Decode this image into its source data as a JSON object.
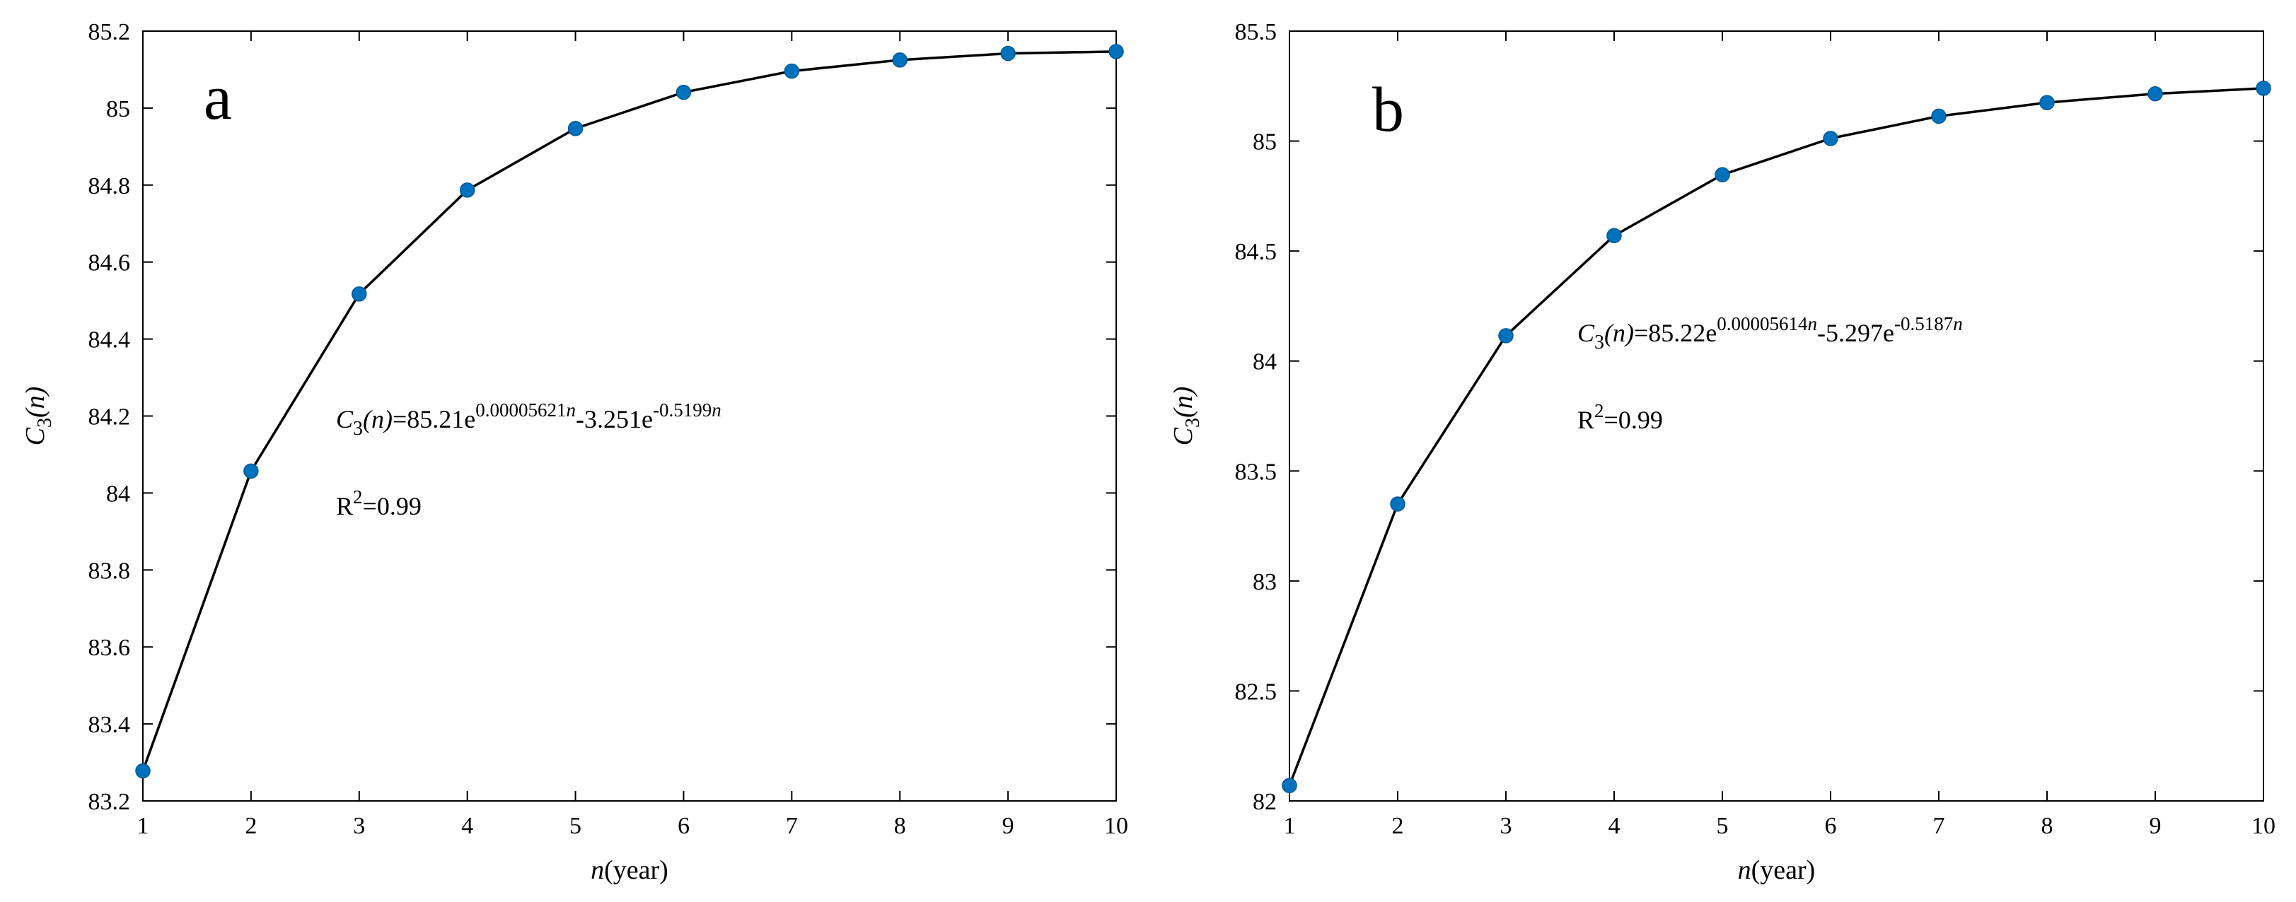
{
  "colors": {
    "marker": "#0072BD",
    "line": "#000000",
    "axis": "#000000",
    "background": "#ffffff"
  },
  "chart_data": [
    {
      "type": "line",
      "panel_label": "a",
      "xlabel": {
        "italic": "n",
        "rest": "(year)"
      },
      "ylabel": {
        "main": "C",
        "sub": "3",
        "tail": "(n)"
      },
      "x": [
        1,
        2,
        3,
        4,
        5,
        6,
        7,
        8,
        9,
        10
      ],
      "series": [
        {
          "values": [
            83.278,
            84.057,
            84.517,
            84.787,
            84.947,
            85.041,
            85.096,
            85.125,
            85.142,
            85.147
          ]
        }
      ],
      "xlim": [
        1,
        10
      ],
      "ylim": [
        83.2,
        85.2
      ],
      "xticks": [
        "1",
        "2",
        "3",
        "4",
        "5",
        "6",
        "7",
        "8",
        "9",
        "10"
      ],
      "yticks": [
        "83.2",
        "83.4",
        "83.6",
        "83.8",
        "84",
        "84.2",
        "84.4",
        "84.6",
        "84.8",
        "85",
        "85.2"
      ],
      "equation": {
        "lhs": "C",
        "lhs_sub": "3",
        "lhs_tail": "(n)",
        "eq1": "=85.21e",
        "exp1": "0.00005621",
        "mid": "-3.251e",
        "exp2": "-0.5199"
      },
      "r2": {
        "base": "R",
        "sup": "2",
        "value": "=0.99"
      },
      "grid": false,
      "legend": "none"
    },
    {
      "type": "line",
      "panel_label": "b",
      "xlabel": {
        "italic": "n",
        "rest": "(year)"
      },
      "ylabel": {
        "main": "C",
        "sub": "3",
        "tail": "(n)"
      },
      "x": [
        1,
        2,
        3,
        4,
        5,
        6,
        7,
        8,
        9,
        10
      ],
      "series": [
        {
          "values": [
            82.07,
            83.35,
            84.115,
            84.57,
            84.847,
            85.012,
            85.113,
            85.175,
            85.215,
            85.24
          ]
        }
      ],
      "xlim": [
        1,
        10
      ],
      "ylim": [
        82,
        85.5
      ],
      "xticks": [
        "1",
        "2",
        "3",
        "4",
        "5",
        "6",
        "7",
        "8",
        "9",
        "10"
      ],
      "yticks": [
        "82",
        "82.5",
        "83",
        "83.5",
        "84",
        "84.5",
        "85",
        "85.5"
      ],
      "equation": {
        "lhs": "C",
        "lhs_sub": "3",
        "lhs_tail": "(n)",
        "eq1": "=85.22e",
        "exp1": "0.00005614",
        "mid": "-5.297e",
        "exp2": "-0.5187"
      },
      "r2": {
        "base": "R",
        "sup": "2",
        "value": "=0.99"
      },
      "grid": false,
      "legend": "none"
    }
  ]
}
